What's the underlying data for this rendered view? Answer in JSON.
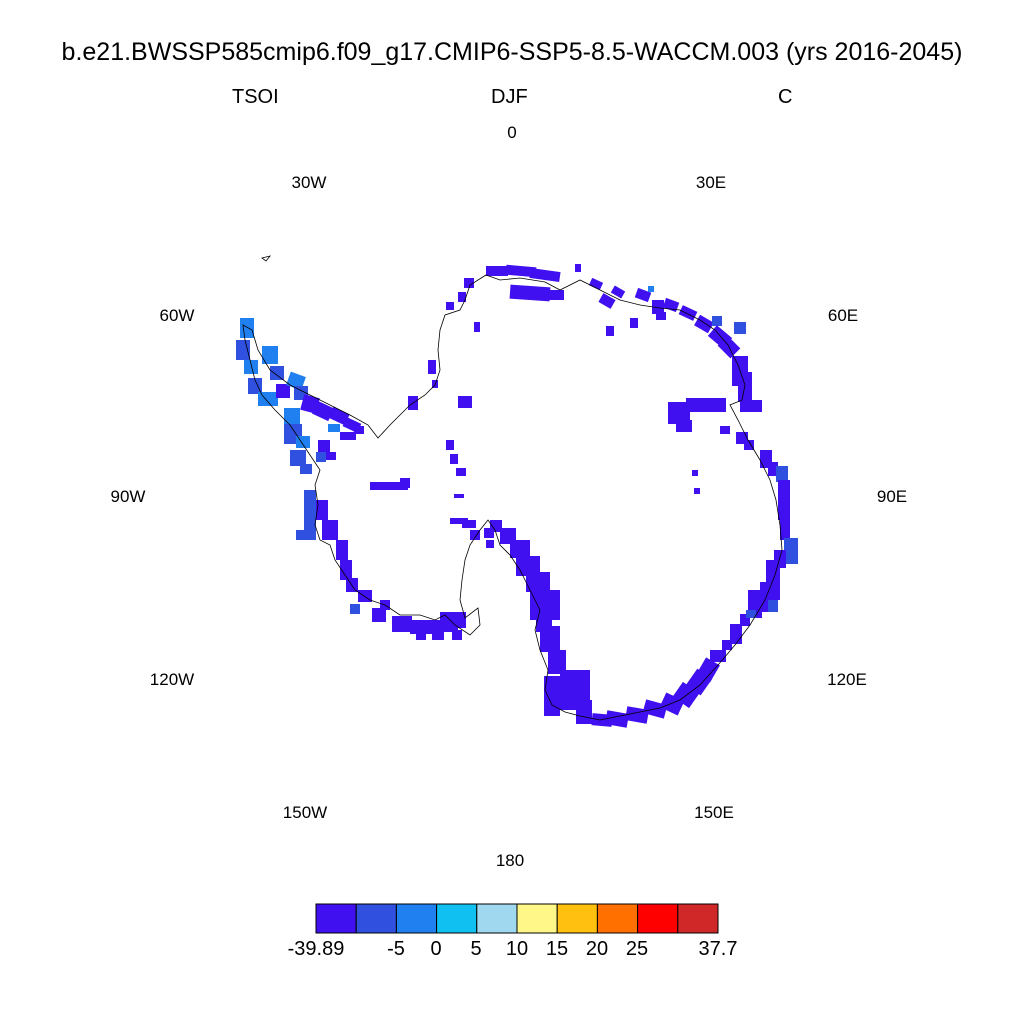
{
  "title": "b.e21.BWSSP585cmip6.f09_g17.CMIP6-SSP5-8.5-WACCM.003 (yrs 2016-2045)",
  "subtitle": {
    "left": "TSOI",
    "center": "DJF",
    "right": "C"
  },
  "longitude_labels": [
    "0",
    "30E",
    "60E",
    "90E",
    "120E",
    "150E",
    "180",
    "150W",
    "120W",
    "90W",
    "60W",
    "30W"
  ],
  "colorbar": {
    "colors": [
      "#4010f0",
      "#3050e0",
      "#2080f0",
      "#10c0f0",
      "#a0d8f0",
      "#fff888",
      "#ffc010",
      "#ff7000",
      "#ff0000",
      "#d02828"
    ],
    "labels": [
      "-39.89",
      "-5",
      "0",
      "5",
      "10",
      "15",
      "20",
      "25",
      "37.7"
    ]
  },
  "map": {
    "projection": "south-polar-stereographic",
    "field": "TSOI",
    "season": "DJF",
    "units": "C",
    "dominant_value_class": "-39.89 to -5",
    "dominant_color": "#4010f0"
  }
}
